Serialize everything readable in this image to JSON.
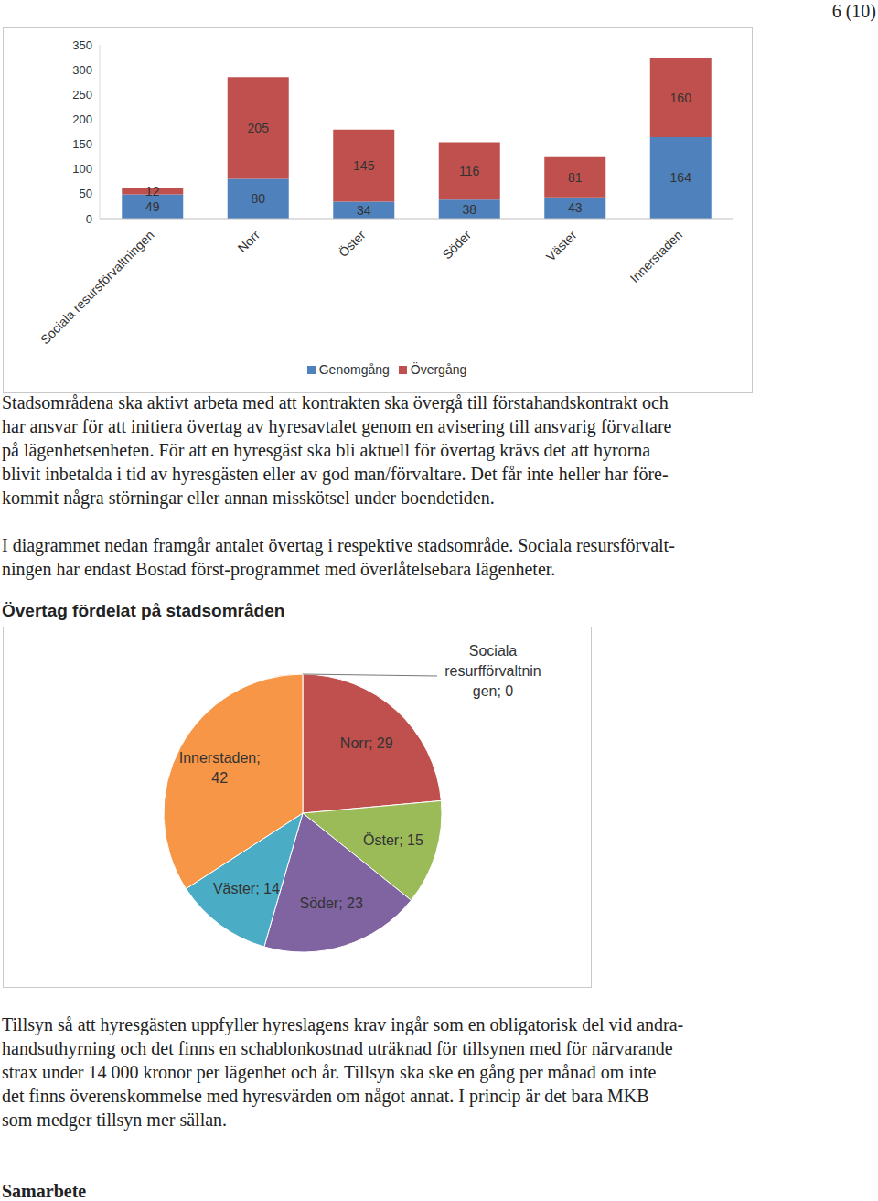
{
  "page_number": "6 (10)",
  "chart_data": [
    {
      "type": "bar",
      "stacked": true,
      "categories": [
        "Sociala resursförvaltningen",
        "Norr",
        "Öster",
        "Söder",
        "Väster",
        "Innerstaden"
      ],
      "series": [
        {
          "name": "Genomgång",
          "color": "#4f81bd",
          "values": [
            49,
            80,
            34,
            38,
            43,
            164
          ]
        },
        {
          "name": "Övergång",
          "color": "#c0504d",
          "values": [
            12,
            205,
            145,
            116,
            81,
            160
          ]
        }
      ],
      "ylim": [
        0,
        350
      ],
      "yticks": [
        0,
        50,
        100,
        150,
        200,
        250,
        300,
        350
      ],
      "data_labels": true,
      "legend": "bottom"
    },
    {
      "type": "pie",
      "title": "Övertag fördelat på stadsområden",
      "categories": [
        "Sociala resurfförvaltningen",
        "Norr",
        "Öster",
        "Söder",
        "Väster",
        "Innerstaden"
      ],
      "values": [
        0,
        29,
        15,
        23,
        14,
        42
      ],
      "value_labels": [
        "Sociala resurfförvaltningen; 0",
        "Norr; 29",
        "Öster; 15",
        "Söder; 23",
        "Väster; 14",
        "Innerstaden; 42"
      ],
      "colors": [
        "#4f81bd",
        "#c0504d",
        "#9bbb59",
        "#8064a2",
        "#4bacc6",
        "#f79646"
      ],
      "data_labels": true
    }
  ],
  "text_after_bar": [
    [
      "Stadsområdena ska aktivt arbeta med att kontrakten ska övergå till förstahandskontrakt och",
      "har ansvar för att initiera övertag av hyresavtalet genom en avisering till ansvarig förvaltare",
      "på lägenhetsenheten. För att en hyresgäst ska bli aktuell för övertag krävs det att hyrorna",
      "blivit inbetalda i tid av hyresgästen eller av god man/förvaltare. Det får inte heller har före-",
      "kommit några störningar eller annan misskötsel under boendetiden."
    ],
    [
      "I diagrammet nedan framgår antalet övertag i respektive stadsområde. Sociala resursförvalt-",
      "ningen har endast Bostad först-programmet med överlåtelsebara lägenheter."
    ]
  ],
  "text_after_pie": [
    [
      "Tillsyn så att hyresgästen uppfyller hyreslagens krav ingår som en obligatorisk del vid andra-",
      "handsuthyrning och det finns en schablonkostnad uträknad för tillsynen med för närvarande",
      "strax under 14 000 kronor per lägenhet och år. Tillsyn ska ske en gång per månad om inte",
      "det finns överenskommelse med hyresvärden om något annat. I princip är det bara MKB",
      "som medger tillsyn mer sällan."
    ]
  ],
  "heading": "Samarbete"
}
